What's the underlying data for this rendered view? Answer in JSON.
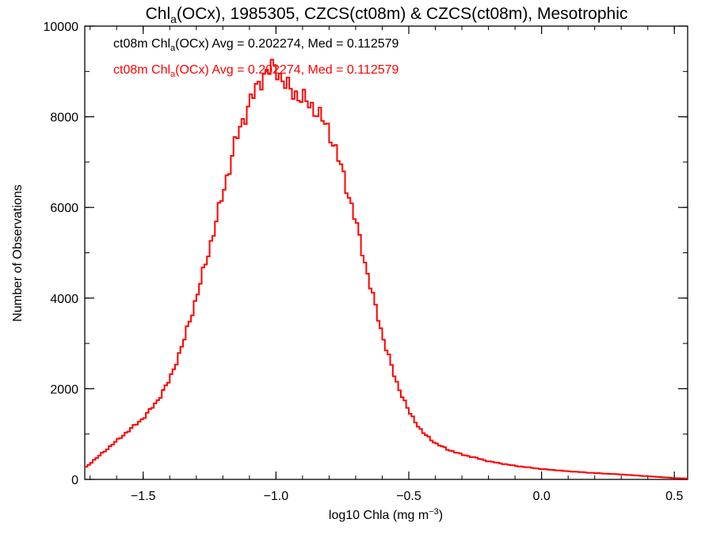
{
  "chart_data": {
    "type": "histogram-step",
    "title": {
      "pre": "Chl",
      "sub": "a",
      "post": "(OCx), 1985305, CZCS(ct08m) & CZCS(ct08m), Mesotrophic"
    },
    "xlabel": {
      "pre": "log10 Chla (mg m",
      "sup": "−3",
      "post": ")"
    },
    "ylabel": "Number of Observations",
    "xlim": [
      -1.72,
      0.55
    ],
    "ylim": [
      0,
      10000
    ],
    "x_ticks": [
      {
        "value": -1.5,
        "label": "−1.5"
      },
      {
        "value": -1.0,
        "label": "−1.0"
      },
      {
        "value": -0.5,
        "label": "−0.5"
      },
      {
        "value": 0.0,
        "label": "0.0"
      },
      {
        "value": 0.5,
        "label": "0.5"
      }
    ],
    "y_ticks": [
      {
        "value": 0,
        "label": "0"
      },
      {
        "value": 2000,
        "label": "2000"
      },
      {
        "value": 4000,
        "label": "4000"
      },
      {
        "value": 6000,
        "label": "6000"
      },
      {
        "value": 8000,
        "label": "8000"
      },
      {
        "value": 10000,
        "label": "10000"
      }
    ],
    "annotations": [
      {
        "pre": "ct08m Chl",
        "sub": "a",
        "post": "(OCx) Avg = 0.202274, Med = 0.112579",
        "color": "#000000"
      },
      {
        "pre": "ct08m Chl",
        "sub": "a",
        "post": "(OCx) Avg = 0.202274, Med = 0.112579",
        "color": "#ff0000"
      }
    ],
    "series": [
      {
        "color": "#ff0000",
        "x": [
          -1.72,
          -1.65,
          -1.6,
          -1.55,
          -1.5,
          -1.45,
          -1.4,
          -1.35,
          -1.3,
          -1.25,
          -1.2,
          -1.15,
          -1.1,
          -1.05,
          -1.02,
          -1.0,
          -0.98,
          -0.95,
          -0.9,
          -0.85,
          -0.8,
          -0.75,
          -0.7,
          -0.65,
          -0.6,
          -0.55,
          -0.5,
          -0.45,
          -0.4,
          -0.35,
          -0.3,
          -0.25,
          -0.2,
          -0.1,
          0.0,
          0.1,
          0.2,
          0.3,
          0.4,
          0.5,
          0.55
        ],
        "y": [
          250,
          600,
          850,
          1100,
          1350,
          1700,
          2200,
          3000,
          4000,
          5100,
          6300,
          7500,
          8300,
          8900,
          9050,
          9100,
          8850,
          8600,
          8400,
          8150,
          7700,
          6800,
          5700,
          4400,
          3200,
          2200,
          1500,
          1050,
          800,
          650,
          550,
          480,
          400,
          300,
          230,
          180,
          140,
          110,
          70,
          30,
          20
        ]
      }
    ]
  }
}
